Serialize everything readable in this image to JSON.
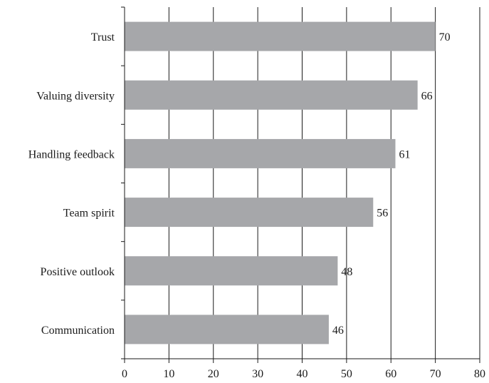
{
  "chart_data": {
    "type": "bar",
    "orientation": "horizontal",
    "categories": [
      "Trust",
      "Valuing diversity",
      "Handling feedback",
      "Team spirit",
      "Positive outlook",
      "Communication"
    ],
    "values": [
      70,
      66,
      61,
      56,
      48,
      46
    ],
    "data_labels": [
      "70",
      "66",
      "61",
      "56",
      "48",
      "46"
    ],
    "title": "",
    "xlabel": "",
    "ylabel": "",
    "xlim": [
      0,
      80
    ],
    "x_ticks": [
      "0",
      "10",
      "20",
      "30",
      "40",
      "50",
      "60",
      "70",
      "80"
    ],
    "grid": "vertical",
    "legend": "none",
    "colors": {
      "bar": "#a6a7aa",
      "grid": "#1a1a1a",
      "axis": "#1a1a1a"
    }
  }
}
